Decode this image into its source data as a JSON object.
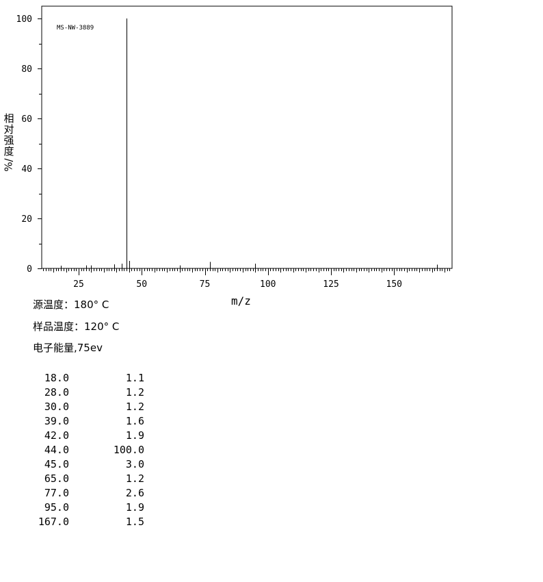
{
  "chart_data": {
    "type": "bar",
    "sample_id": "MS-NW-3889",
    "xlabel": "m/z",
    "ylabel_chars": [
      "相",
      "对",
      "强",
      "度"
    ],
    "ylabel_unit": "%/",
    "xlim": [
      10,
      172
    ],
    "ylim": [
      0,
      100
    ],
    "xticks": [
      25,
      50,
      75,
      100,
      125,
      150
    ],
    "yticks": [
      0,
      20,
      40,
      60,
      80,
      100
    ],
    "peaks": [
      {
        "mz": 18.0,
        "intensity": 1.1
      },
      {
        "mz": 28.0,
        "intensity": 1.2
      },
      {
        "mz": 30.0,
        "intensity": 1.2
      },
      {
        "mz": 39.0,
        "intensity": 1.6
      },
      {
        "mz": 42.0,
        "intensity": 1.9
      },
      {
        "mz": 44.0,
        "intensity": 100.0
      },
      {
        "mz": 45.0,
        "intensity": 3.0
      },
      {
        "mz": 65.0,
        "intensity": 1.2
      },
      {
        "mz": 77.0,
        "intensity": 2.6
      },
      {
        "mz": 95.0,
        "intensity": 1.9
      },
      {
        "mz": 167.0,
        "intensity": 1.5
      }
    ]
  },
  "conditions": {
    "source_temp": "源温度：180° C",
    "sample_temp": "样品温度：120° C",
    "electron_energy": "电子能量,75ev"
  },
  "peak_table": [
    {
      "mz": "18.0",
      "intensity": "1.1"
    },
    {
      "mz": "28.0",
      "intensity": "1.2"
    },
    {
      "mz": "30.0",
      "intensity": "1.2"
    },
    {
      "mz": "39.0",
      "intensity": "1.6"
    },
    {
      "mz": "42.0",
      "intensity": "1.9"
    },
    {
      "mz": "44.0",
      "intensity": "100.0"
    },
    {
      "mz": "45.0",
      "intensity": "3.0"
    },
    {
      "mz": "65.0",
      "intensity": "1.2"
    },
    {
      "mz": "77.0",
      "intensity": "2.6"
    },
    {
      "mz": "95.0",
      "intensity": "1.9"
    },
    {
      "mz": "167.0",
      "intensity": "1.5"
    }
  ]
}
